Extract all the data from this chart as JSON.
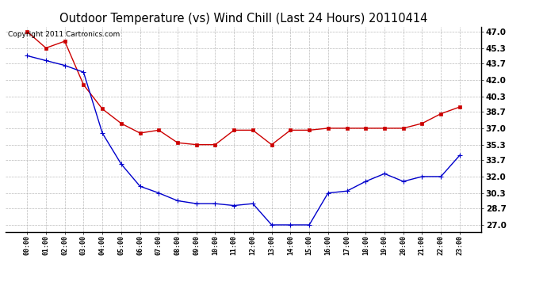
{
  "title": "Outdoor Temperature (vs) Wind Chill (Last 24 Hours) 20110414",
  "copyright_text": "Copyright 2011 Cartronics.com",
  "x_labels": [
    "00:00",
    "01:00",
    "02:00",
    "03:00",
    "04:00",
    "05:00",
    "06:00",
    "07:00",
    "08:00",
    "09:00",
    "10:00",
    "11:00",
    "12:00",
    "13:00",
    "14:00",
    "15:00",
    "16:00",
    "17:00",
    "18:00",
    "19:00",
    "20:00",
    "21:00",
    "22:00",
    "23:00"
  ],
  "temp_data": [
    44.5,
    44.0,
    43.5,
    42.8,
    36.5,
    33.3,
    31.0,
    30.3,
    29.5,
    29.2,
    29.2,
    29.0,
    29.2,
    27.0,
    27.0,
    27.0,
    30.3,
    30.5,
    31.5,
    32.3,
    31.5,
    32.0,
    32.0,
    34.2
  ],
  "wind_chill_data": [
    47.0,
    45.3,
    46.0,
    41.5,
    39.0,
    37.5,
    36.5,
    36.8,
    35.5,
    35.3,
    35.3,
    36.8,
    36.8,
    35.3,
    36.8,
    36.8,
    37.0,
    37.0,
    37.0,
    37.0,
    37.0,
    37.5,
    38.5,
    39.2
  ],
  "y_ticks": [
    27.0,
    28.7,
    30.3,
    32.0,
    33.7,
    35.3,
    37.0,
    38.7,
    40.3,
    42.0,
    43.7,
    45.3,
    47.0
  ],
  "ylim": [
    26.3,
    47.5
  ],
  "temp_color": "#0000cc",
  "wind_chill_color": "#cc0000",
  "background_color": "#ffffff",
  "grid_color": "#aaaaaa",
  "title_fontsize": 10.5,
  "copyright_fontsize": 6.5
}
